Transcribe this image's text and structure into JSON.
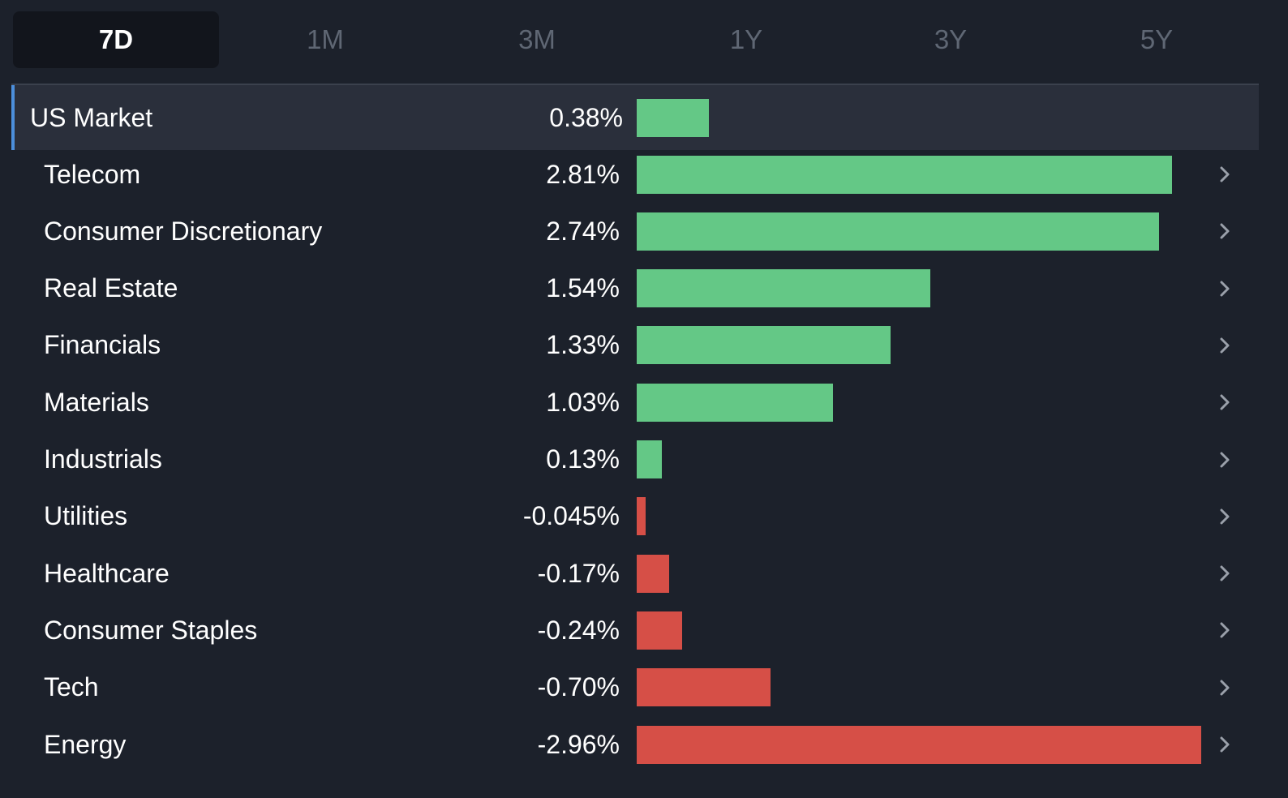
{
  "tabs": [
    {
      "label": "7D",
      "active": true
    },
    {
      "label": "1M",
      "active": false
    },
    {
      "label": "3M",
      "active": false
    },
    {
      "label": "1Y",
      "active": false
    },
    {
      "label": "3Y",
      "active": false
    },
    {
      "label": "5Y",
      "active": false
    }
  ],
  "colors": {
    "positive": "#64c886",
    "negative": "#d64f47",
    "accent": "#4c8fdc"
  },
  "chart_data": {
    "type": "bar",
    "orientation": "horizontal",
    "categories": [
      "US Market",
      "Telecom",
      "Consumer Discretionary",
      "Real Estate",
      "Financials",
      "Materials",
      "Industrials",
      "Utilities",
      "Healthcare",
      "Consumer Staples",
      "Tech",
      "Energy"
    ],
    "value_labels": [
      "0.38%",
      "2.81%",
      "2.74%",
      "1.54%",
      "1.33%",
      "1.03%",
      "0.13%",
      "-0.045%",
      "-0.17%",
      "-0.24%",
      "-0.70%",
      "-2.96%"
    ],
    "values": [
      0.38,
      2.81,
      2.74,
      1.54,
      1.33,
      1.03,
      0.13,
      -0.045,
      -0.17,
      -0.24,
      -0.7,
      -2.96
    ],
    "bar_length": "absolute value",
    "title": "",
    "xlabel": "",
    "ylabel": ""
  }
}
